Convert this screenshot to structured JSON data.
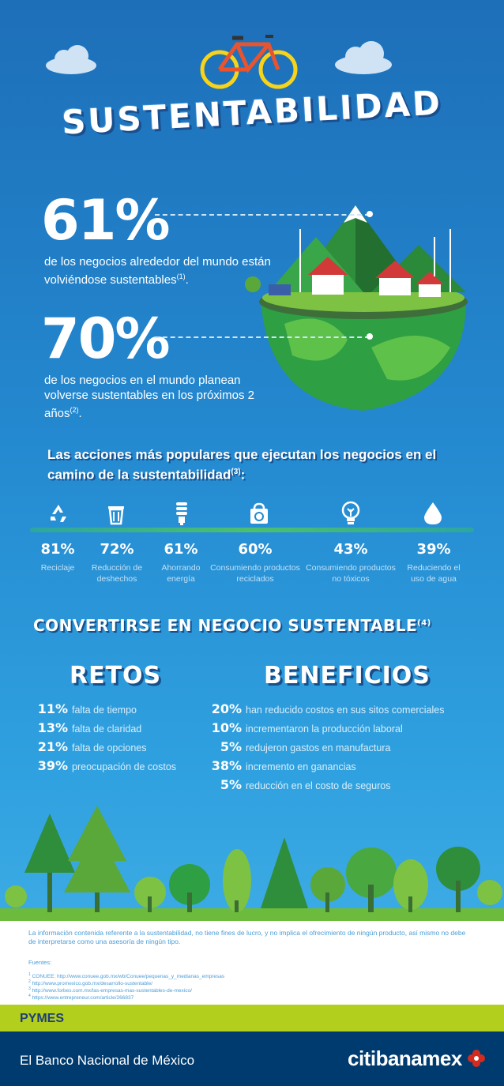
{
  "title": "SUSTENTABILIDAD",
  "stats": [
    {
      "value": "61%",
      "text": "de los negocios alrededor del mundo están volviéndose sustentables",
      "ref": "(1)",
      "suffix": "."
    },
    {
      "value": "70%",
      "text": "de los negocios en el mundo planean volverse sustentables en los próximos 2 años",
      "ref": "(2)",
      "suffix": "."
    }
  ],
  "actions": {
    "heading": "Las acciones más populares que ejecutan los negocios en el camino de la sustentabilidad",
    "ref": "(3)",
    "colon": ":",
    "items": [
      {
        "icon": "recycle-icon",
        "value": "81%",
        "label": "Reciclaje"
      },
      {
        "icon": "trash-bin-icon",
        "value": "72%",
        "label": "Reducción de deshechos"
      },
      {
        "icon": "energy-saving-bulb-icon",
        "value": "61%",
        "label": "Ahorrando energía"
      },
      {
        "icon": "recycled-bag-icon",
        "value": "60%",
        "label": "Consumiendo productos reciclados"
      },
      {
        "icon": "eco-bulb-icon",
        "value": "43%",
        "label": "Consumiendo productos no tóxicos"
      },
      {
        "icon": "water-drop-icon",
        "value": "39%",
        "label": "Reduciendo el uso de agua"
      }
    ]
  },
  "convertirse": {
    "part1": "CONVERTIRSE EN",
    "part2": "NEGOCIO SUSTENTABLE",
    "ref": "(4)"
  },
  "retos": {
    "heading": "RETOS",
    "items": [
      {
        "value": "11%",
        "text": "falta de tiempo"
      },
      {
        "value": "13%",
        "text": "falta de claridad"
      },
      {
        "value": "21%",
        "text": "falta de opciones"
      },
      {
        "value": "39%",
        "text": "preocupación de costos"
      }
    ]
  },
  "beneficios": {
    "heading": "BENEFICIOS",
    "items": [
      {
        "value": "20%",
        "text": "han reducido costos en sus sitos comerciales"
      },
      {
        "value": "10%",
        "text": "incrementaron la producción laboral"
      },
      {
        "value": "5%",
        "text": "redujeron gastos en manufactura"
      },
      {
        "value": "38%",
        "text": "incremento en ganancias"
      },
      {
        "value": "5%",
        "text": "reducción en el costo de seguros"
      }
    ]
  },
  "disclaimer": "La información contenida referente a la sustentabilidad, no tiene fines de lucro, y no implica el ofrecimiento de ningún producto, así mismo no debe de interpretarse como una asesoría de ningún tipo.",
  "sources_label": "Fuentes:",
  "sources": [
    {
      "n": "1",
      "text": "CONUEE: http://www.conuee.gob.mx/wb/Conuee/pequenas_y_medianas_empresas"
    },
    {
      "n": "2",
      "text": "http://www.promexico.gob.mx/desarrollo-sustentable/"
    },
    {
      "n": "3",
      "text": "http://www.forbes.com.mx/las-empresas-mas-sustentables-de-mexico/"
    },
    {
      "n": "4",
      "text": "https://www.entrepreneur.com/article/266837"
    }
  ],
  "pymes": "PYMES",
  "footer": {
    "left": "El Banco Nacional de México",
    "logo": "citibanamex"
  },
  "colors": {
    "sky": "#2489d0",
    "green": "#6dbb3c",
    "lime": "#b2cf1e",
    "navy": "#003b70",
    "red": "#d52b1e"
  }
}
